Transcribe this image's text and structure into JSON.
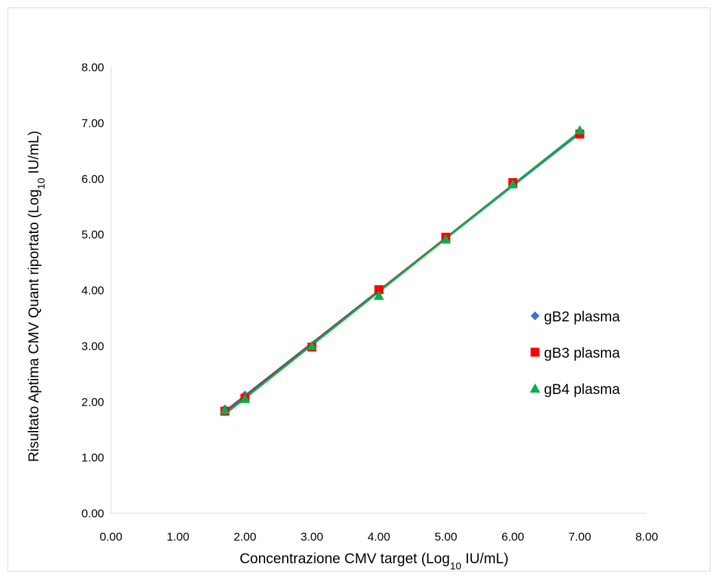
{
  "chart_data": {
    "type": "scatter",
    "title": "",
    "xlabel": {
      "prefix": "Concentrazione CMV target (Log",
      "sub": "10",
      "suffix": " IU/mL)"
    },
    "ylabel": {
      "prefix": "Risultato Aptima CMV Quant riportato (Log",
      "sub": "10",
      "suffix": " IU/mL)"
    },
    "xlim": [
      0,
      8
    ],
    "ylim": [
      0,
      8
    ],
    "xticks": [
      "0.00",
      "1.00",
      "2.00",
      "3.00",
      "4.00",
      "5.00",
      "6.00",
      "7.00",
      "8.00"
    ],
    "yticks": [
      "0.00",
      "1.00",
      "2.00",
      "3.00",
      "4.00",
      "5.00",
      "6.00",
      "7.00",
      "8.00"
    ],
    "grid": false,
    "legend_position": "right",
    "trendlines": true,
    "series": [
      {
        "name": "gB2 plasma",
        "marker": "diamond",
        "color": "#4472c4",
        "x": [
          1.7,
          2.0,
          3.0,
          4.0,
          5.0,
          6.0,
          7.0
        ],
        "y": [
          1.87,
          2.12,
          2.98,
          3.98,
          4.92,
          5.9,
          6.82
        ]
      },
      {
        "name": "gB3 plasma",
        "marker": "square",
        "color": "#ff0000",
        "x": [
          1.7,
          2.0,
          3.0,
          4.0,
          5.0,
          6.0,
          7.0
        ],
        "y": [
          1.83,
          2.06,
          2.98,
          4.01,
          4.95,
          5.93,
          6.8
        ]
      },
      {
        "name": "gB4 plasma",
        "marker": "triangle",
        "color": "#00b050",
        "x": [
          1.7,
          2.0,
          3.0,
          4.0,
          5.0,
          6.0,
          7.0
        ],
        "y": [
          1.85,
          2.05,
          3.0,
          3.9,
          4.91,
          5.9,
          6.87
        ]
      }
    ]
  }
}
